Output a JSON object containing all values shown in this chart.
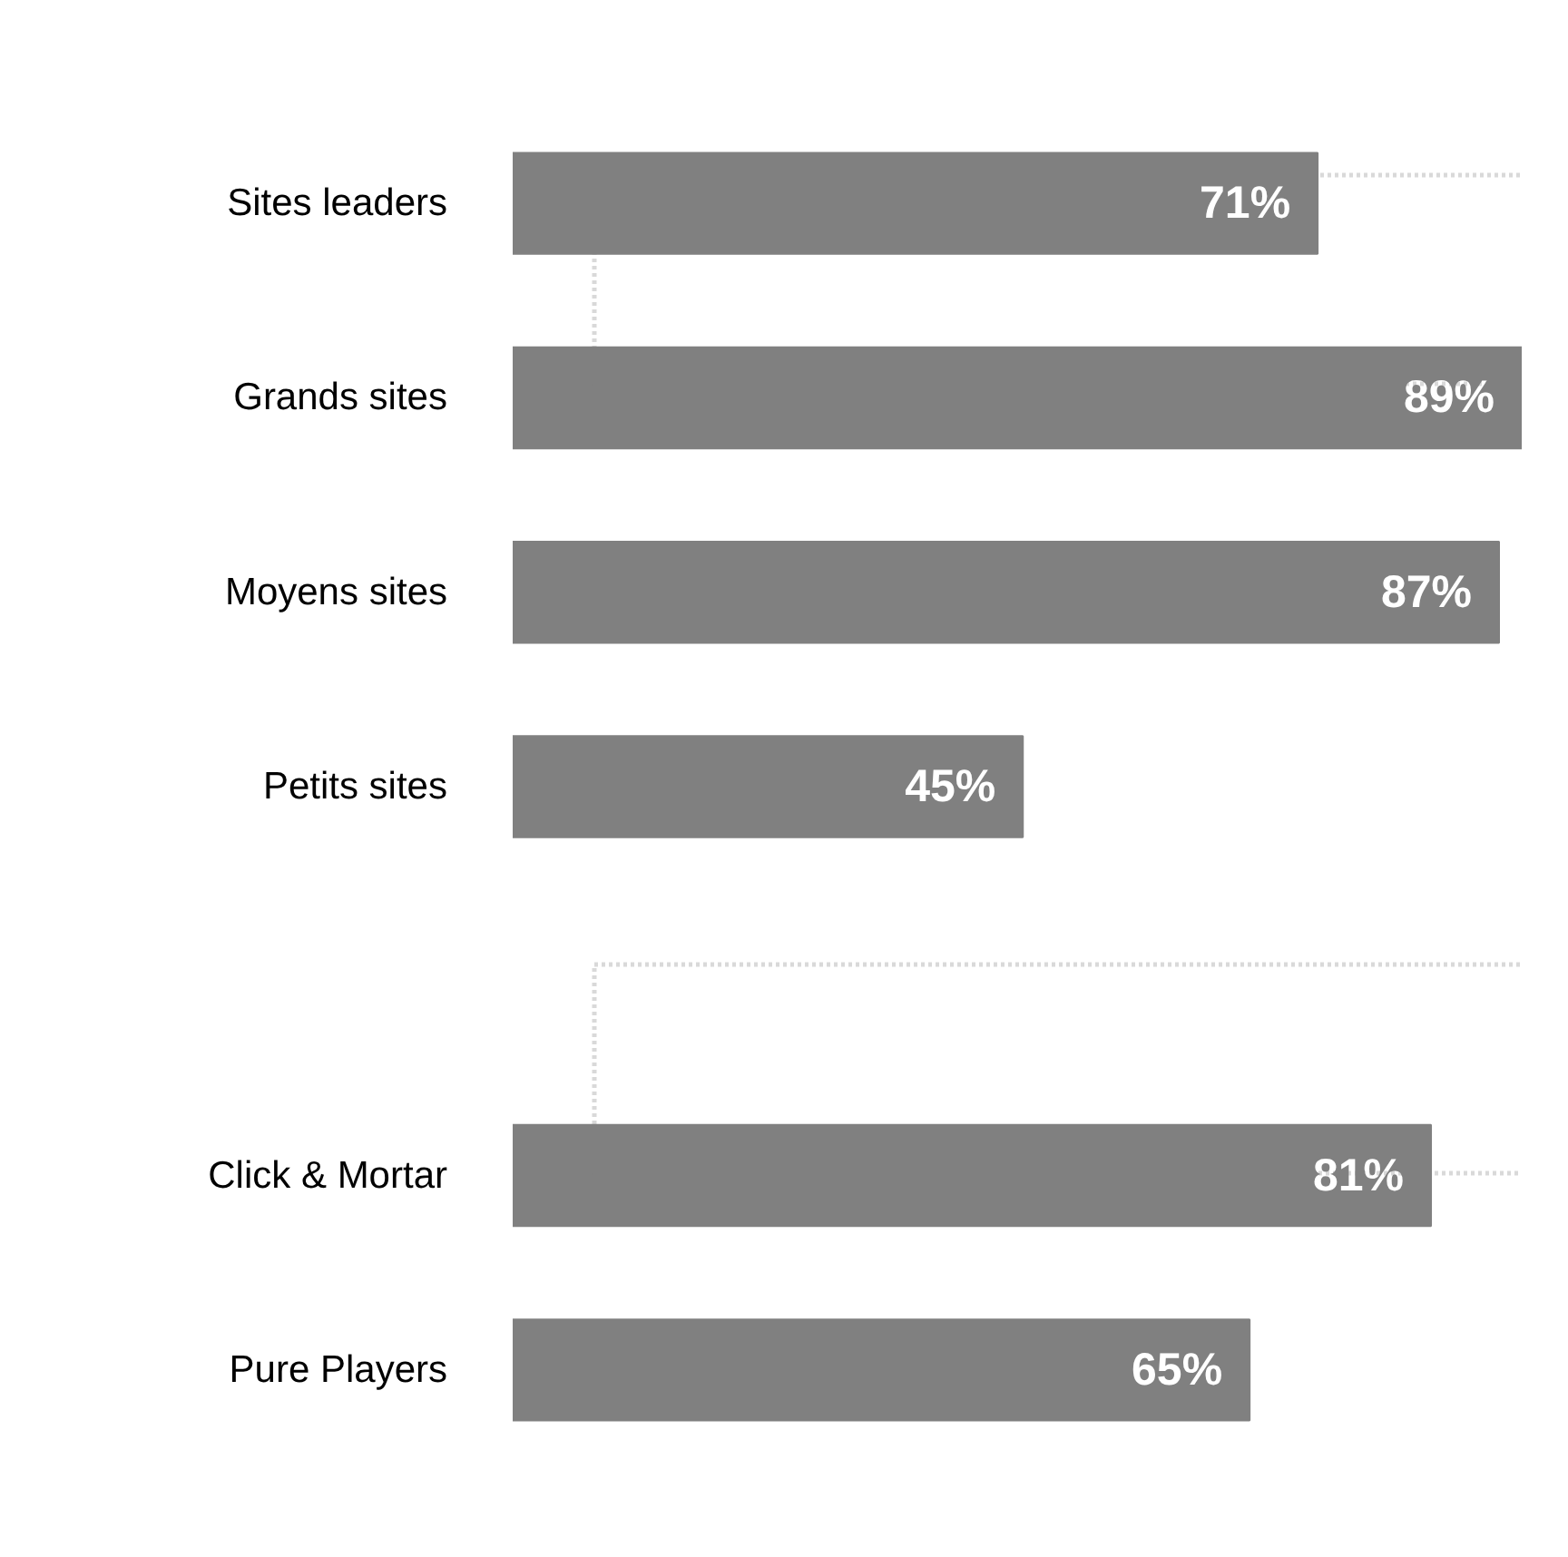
{
  "chart_data": {
    "type": "bar",
    "orientation": "horizontal",
    "categories": [
      "Sites leaders",
      "Grands sites",
      "Moyens sites",
      "Petits sites",
      null,
      "Click & Mortar",
      "Pure Players"
    ],
    "values": [
      71,
      89,
      87,
      45,
      null,
      81,
      65
    ],
    "color": "#808080",
    "value_labels": [
      "71%",
      "89%",
      "87%",
      "45%",
      null,
      "81%",
      "65%"
    ],
    "grid": false,
    "tick_labels": "y"
  }
}
